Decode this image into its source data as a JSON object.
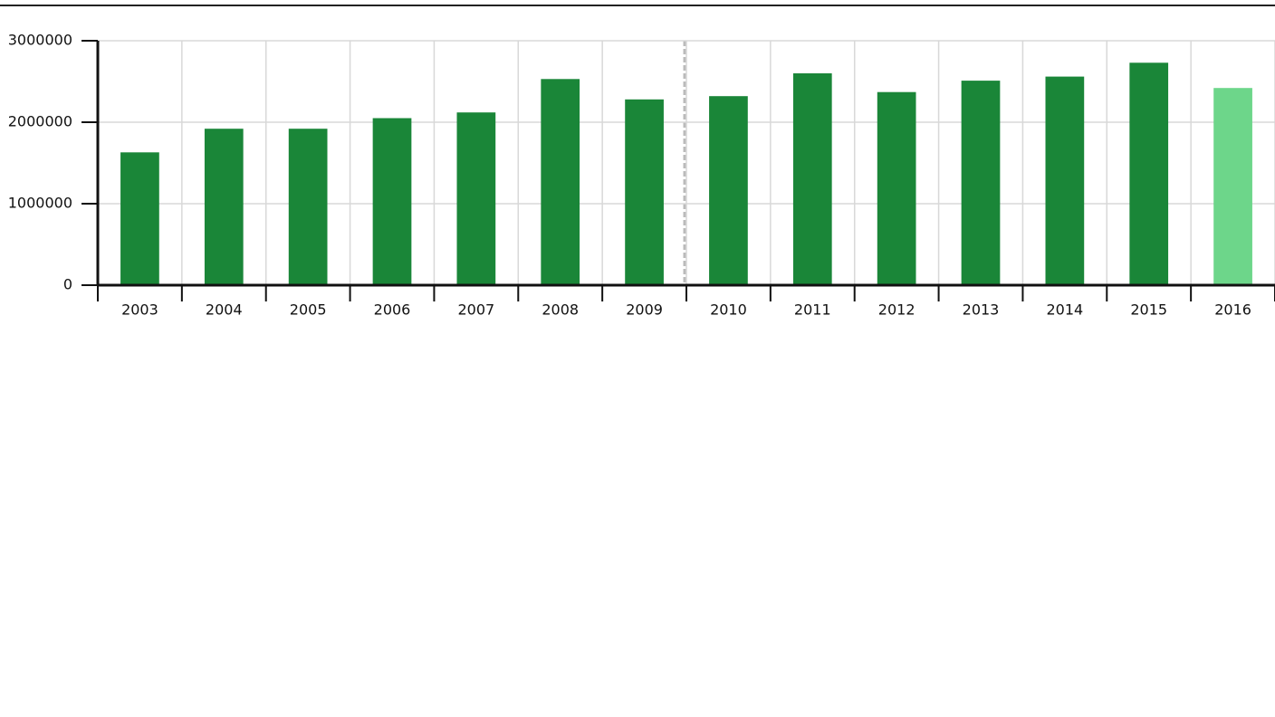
{
  "chart_data": {
    "type": "bar",
    "categories": [
      "2003",
      "2004",
      "2005",
      "2006",
      "2007",
      "2008",
      "2009",
      "2010",
      "2011",
      "2012",
      "2013",
      "2014",
      "2015",
      "2016"
    ],
    "values": [
      1630000,
      1920000,
      1920000,
      2050000,
      2120000,
      2530000,
      2280000,
      2320000,
      2600000,
      2370000,
      2510000,
      2560000,
      2730000,
      2420000
    ],
    "colors": [
      "#1a8638",
      "#1a8638",
      "#1a8638",
      "#1a8638",
      "#1a8638",
      "#1a8638",
      "#1a8638",
      "#1a8638",
      "#1a8638",
      "#1a8638",
      "#1a8638",
      "#1a8638",
      "#1a8638",
      "#6dd68a"
    ],
    "ylim": [
      0,
      3000000
    ],
    "yticks": [
      0,
      1000000,
      2000000,
      3000000
    ],
    "grid": true
  }
}
